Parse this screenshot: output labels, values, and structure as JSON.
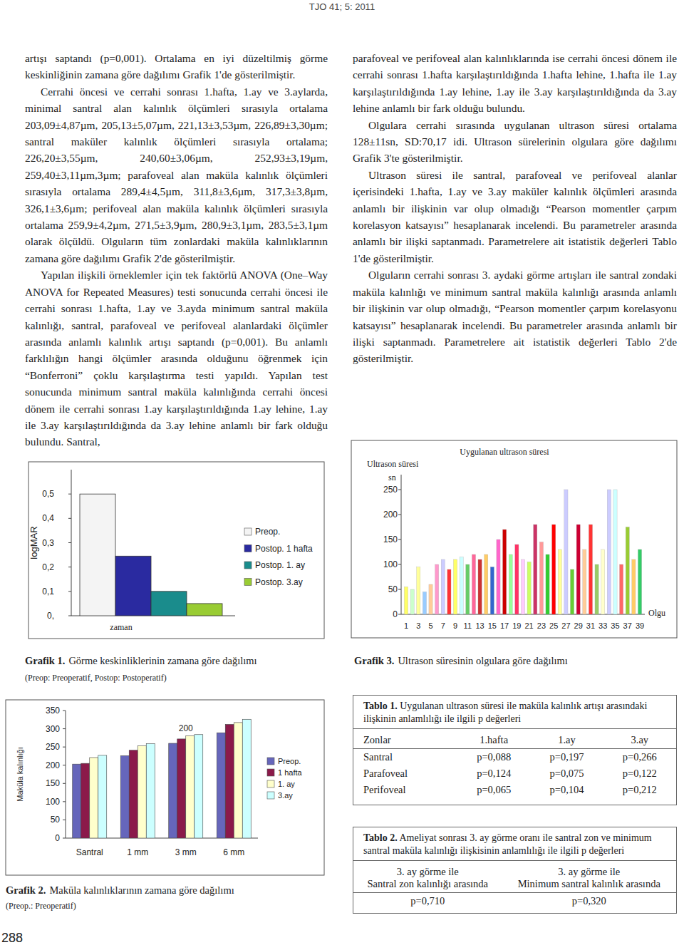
{
  "header": {
    "journal": "TJO 41; 5: 2011"
  },
  "page_number": "288",
  "left_column": {
    "paragraphs": [
      "artışı saptandı (p=0,001). Ortalama en iyi düzeltilmiş görme keskinliğinin zamana göre dağılımı Grafik 1'de gösterilmiştir.",
      "Cerrahi öncesi ve cerrahi sonrası 1.hafta, 1.ay ve 3.aylarda, minimal santral alan kalınlık ölçümleri sırasıyla ortalama 203,09±4,87µm, 205,13±5,07µm, 221,13±3,53µm, 226,89±3,30µm; santral maküler kalınlık ölçümleri sırasıyla ortalama; 226,20±3,55µm, 240,60±3,06µm, 252,93±3,19µm, 259,40±3,11µm,3µm; parafoveal alan maküla kalınlık ölçümleri sırasıyla ortalama 289,4±4,5µm, 311,8±3,6µm, 317,3±3,8µm, 326,1±3,6µm; perifoveal alan maküla kalınlık ölçümleri sırasıyla ortalama 259,9±4,2µm, 271,5±3,9µm, 280,9±3,1µm, 283,5±3,1µm olarak ölçüldü. Olguların tüm zonlardaki maküla kalınlıklarının zamana göre dağılımı Grafik 2'de gösterilmiştir.",
      "Yapılan ilişkili örneklemler için tek faktörlü ANOVA (One–Way ANOVA for Repeated Measures) testi sonucunda cerrahi öncesi ile cerrahi sonrası 1.hafta, 1.ay ve 3.ayda minimum santral maküla kalınlığı, santral, parafoveal ve perifoveal alanlardaki ölçümler arasında anlamlı kalınlık artışı saptandı (p=0,001). Bu anlamlı farklılığın hangi ölçümler arasında olduğunu öğrenmek için “Bonferroni” çoklu karşılaştırma testi yapıldı. Yapılan test sonucunda minimum santral maküla kalınlığında cerrahi öncesi dönem ile cerrahi sonrası 1.ay karşılaştırıldığında 1.ay lehine, 1.ay ile 3.ay karşılaştırıldığında da 3.ay lehine anlamlı bir fark olduğu bulundu. Santral,"
    ]
  },
  "right_column": {
    "paragraphs": [
      "parafoveal ve perifoveal alan kalınlıklarında ise cerrahi öncesi dönem ile cerrahi sonrası 1.hafta karşılaştırıldığında 1.hafta lehine, 1.hafta ile 1.ay karşılaştırıldığında 1.ay lehine, 1.ay ile 3.ay karşılaştırıldığında da 3.ay lehine anlamlı bir fark olduğu bulundu.",
      "Olgulara cerrahi sırasında uygulanan ultrason süresi ortalama 128±11sn, SD:70,17 idi. Ultrason sürelerinin olgulara göre dağılımı Grafik 3'te gösterilmiştir.",
      "Ultrason süresi ile santral, parafoveal ve perifoveal alanlar içerisindeki 1.hafta, 1.ay ve 3.ay maküler kalınlık ölçümleri arasında anlamlı bir ilişkinin var olup olmadığı “Pearson momentler çarpım korelasyon katsayısı” hesaplanarak incelendi. Bu parametreler arasında anlamlı bir ilişki saptanmadı. Parametrelere ait istatistik değerleri Tablo 1'de gösterilmiştir.",
      "Olguların cerrahi sonrası 3. aydaki görme artışları ile santral zondaki maküla kalınlığı ve minimum santral maküla kalınlığı arasında anlamlı bir ilişkinin var olup olmadığı, “Pearson momentler çarpım korelasyonu katsayısı” hesaplanarak incelendi. Bu parametreler arasında anlamlı bir ilişki saptanmadı. Parametrelere ait istatistik değerleri Tablo 2'de gösterilmiştir."
    ]
  },
  "chart_data": [
    {
      "type": "bar",
      "caption_label": "Grafik 1.",
      "caption": "Görme keskinliklerinin zamana göre dağılımı",
      "note": "(Preop: Preoperatif, Postop: Postoperatif)",
      "x_label": "zaman",
      "y_label": "logMAR",
      "series": [
        {
          "name": "Preop.",
          "color": "#f4f4f4",
          "values": [
            0.5
          ]
        },
        {
          "name": "Postop. 1 hafta",
          "color": "#2a2aa0",
          "values": [
            0.245
          ]
        },
        {
          "name": "Postop. 1. ay",
          "color": "#1a8c8c",
          "values": [
            0.1
          ]
        },
        {
          "name": "Postop. 3.ay",
          "color": "#99cc33",
          "values": [
            0.05
          ]
        }
      ],
      "ylim": [
        0,
        0.6
      ],
      "yticks": [
        {
          "value": 0.5,
          "label": "0,5"
        },
        {
          "value": 0.4,
          "label": "0,4"
        },
        {
          "value": 0.3,
          "label": "0,3"
        },
        {
          "value": 0.2,
          "label": "0,2"
        },
        {
          "value": 0.1,
          "label": "0,1"
        },
        {
          "value": 0,
          "label": "0,"
        }
      ],
      "legend": "right"
    },
    {
      "type": "bar",
      "caption_label": "Grafik 2.",
      "caption": "Maküla kalınlıklarının zamana göre dağılımı",
      "note": "(Preop.: Preoperatif)",
      "y_label": "Maküla kalınlığı",
      "categories": [
        "Santral",
        "1 mm",
        "3 mm",
        "6 mm"
      ],
      "series": [
        {
          "name": "Preop.",
          "color": "#6666bb",
          "values": [
            203,
            226,
            260,
            289
          ]
        },
        {
          "name": "1 hafta",
          "color": "#8b1a4a",
          "values": [
            205,
            241,
            272,
            312
          ]
        },
        {
          "name": "1. ay",
          "color": "#ffffcc",
          "values": [
            221,
            253,
            281,
            317
          ]
        },
        {
          "name": "3.ay",
          "color": "#ccffff",
          "values": [
            227,
            259,
            284,
            326
          ]
        }
      ],
      "annotations": [
        "200"
      ],
      "ylim": [
        0,
        350
      ],
      "yticks": [
        0,
        50,
        100,
        150,
        200,
        250,
        300,
        350
      ],
      "legend": "right"
    },
    {
      "type": "bar",
      "caption_label": "Grafik 3.",
      "caption": "Ultrason süresinin olgulara göre dağılımı",
      "title": "Uygulanan ultrason süresi",
      "y_label": "Ultrason süresi",
      "y_unit": "sn",
      "x_label": "Olgu",
      "categories": [
        "1",
        null,
        "3",
        null,
        "5",
        null,
        "7",
        null,
        "9",
        null,
        "11",
        null,
        "13",
        null,
        "15",
        null,
        "17",
        null,
        "19",
        null,
        "21",
        null,
        "23",
        null,
        "25",
        null,
        "27",
        null,
        "29",
        null,
        "31",
        null,
        "33",
        null,
        "35",
        null,
        "37",
        null,
        "39"
      ],
      "values": [
        55,
        50,
        95,
        45,
        60,
        100,
        110,
        90,
        110,
        115,
        100,
        120,
        110,
        120,
        95,
        150,
        170,
        120,
        140,
        110,
        105,
        180,
        145,
        120,
        180,
        130,
        250,
        90,
        180,
        130,
        180,
        100,
        130,
        250,
        250,
        100,
        175,
        110,
        130
      ],
      "colors": [
        "#ffff66",
        "#ccffcc",
        "#ffff99",
        "#99ccff",
        "#ffcc99",
        "#ff99cc",
        "#ccccff",
        "#ff3333",
        "#ffff66",
        "#ccffff",
        "#66cc66",
        "#ff6699",
        "#cc3333",
        "#ffcc66",
        "#3366cc",
        "#ff66cc",
        "#cc0000",
        "#99ff99",
        "#ff3366",
        "#ffccff",
        "#ccff66",
        "#cc3366",
        "#ff9999",
        "#33cc33",
        "#ff0000",
        "#ffff99",
        "#ccccff",
        "#66cc33",
        "#cc0033",
        "#ffcc99",
        "#ff3333",
        "#99cc66",
        "#ffffcc",
        "#ccccff",
        "#ccffff",
        "#ff6666",
        "#99cc33",
        "#ffcc66",
        "#33cc66"
      ],
      "ylim": [
        0,
        280
      ],
      "yticks": [
        0,
        50,
        100,
        150,
        200,
        250
      ]
    }
  ],
  "tables": [
    {
      "label": "Tablo 1.",
      "caption": "Uygulanan ultrason süresi ile maküla kalınlık artışı arasındaki ilişkinin anlamlılığı ile ilgili p değerleri",
      "header": [
        "Zonlar",
        "1.hafta",
        "1.ay",
        "3.ay"
      ],
      "rows": [
        [
          "Santral",
          "p=0,088",
          "p=0,197",
          "p=0,266"
        ],
        [
          "Parafoveal",
          "p=0,124",
          "p=0,075",
          "p=0,122"
        ],
        [
          "Perifoveal",
          "p=0,065",
          "p=0,104",
          "p=0,212"
        ]
      ]
    },
    {
      "label": "Tablo 2.",
      "caption": "Ameliyat sonrası 3. ay görme oranı ile santral zon ve minimum santral maküla kalınlığı ilişkisinin anlamlılığı ile ilgili p değerleri",
      "header": [
        [
          "3. ay görme ile",
          "Santral zon kalınlığı arasında"
        ],
        [
          "3. ay görme ile",
          "Minimum santral kalınlık arasında"
        ]
      ],
      "rows": [
        [
          "p=0,710",
          "p=0,320"
        ]
      ]
    }
  ]
}
